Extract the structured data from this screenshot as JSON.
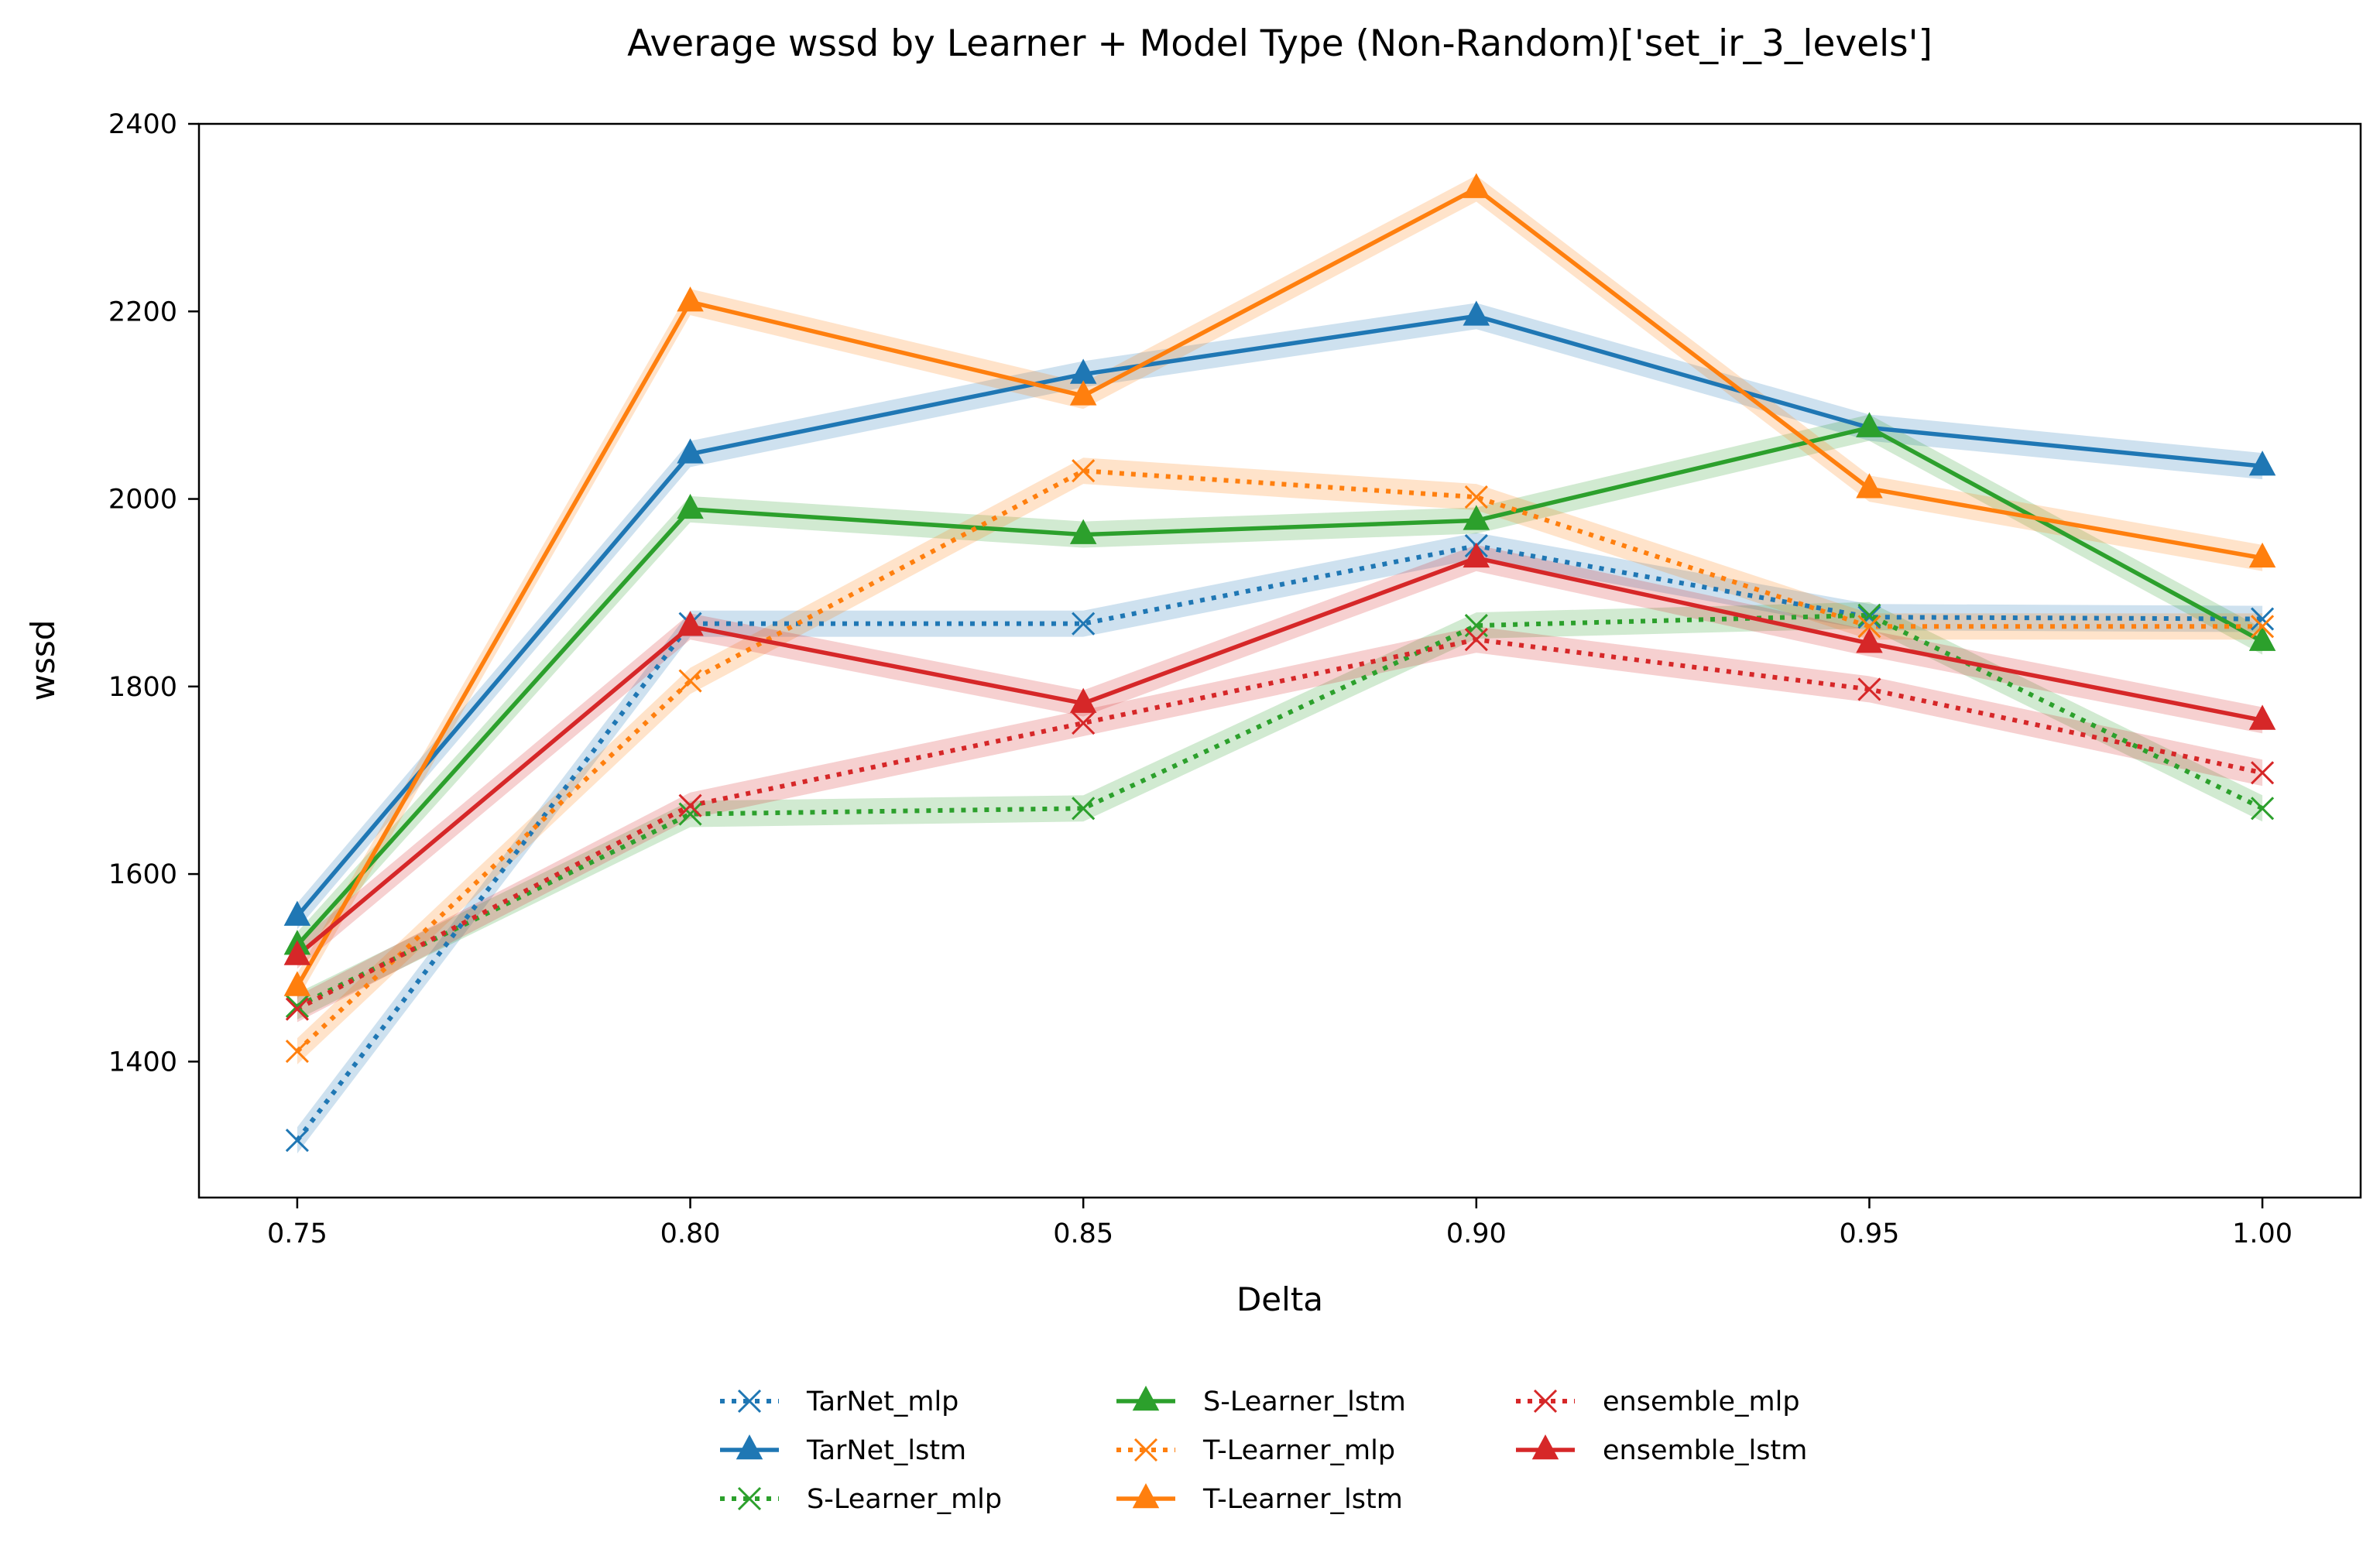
{
  "chart_data": {
    "type": "line",
    "title": "Average wssd by Learner + Model Type (Non-Random)['set_ir_3_levels']",
    "xlabel": "Delta",
    "ylabel": "wssd",
    "x": [
      0.75,
      0.8,
      0.85,
      0.9,
      0.95,
      1.0
    ],
    "x_tick_labels": [
      "0.75",
      "0.80",
      "0.85",
      "0.90",
      "0.95",
      "1.00"
    ],
    "y_ticks": [
      1400,
      1600,
      1800,
      2000,
      2200,
      2400
    ],
    "y_tick_labels": [
      "1400",
      "1600",
      "1800",
      "2000",
      "2200",
      "2400"
    ],
    "xlim": [
      0.7375,
      1.0125
    ],
    "ylim": [
      1255,
      2400
    ],
    "grid": false,
    "legend_position": "bottom-center",
    "band_halfwidth": 14,
    "series": [
      {
        "name": "TarNet_mlp",
        "color": "#1f77b4",
        "style": "dotted",
        "marker": "x",
        "values": [
          1316,
          1867,
          1867,
          1950,
          1874,
          1872
        ]
      },
      {
        "name": "TarNet_lstm",
        "color": "#1f77b4",
        "style": "solid",
        "marker": "triangle",
        "values": [
          1555,
          2048,
          2133,
          2195,
          2076,
          2035
        ]
      },
      {
        "name": "S-Learner_mlp",
        "color": "#2ca02c",
        "style": "dotted",
        "marker": "x",
        "values": [
          1459,
          1664,
          1670,
          1865,
          1876,
          1670
        ]
      },
      {
        "name": "S-Learner_lstm",
        "color": "#2ca02c",
        "style": "solid",
        "marker": "triangle",
        "values": [
          1524,
          1989,
          1962,
          1977,
          2076,
          1848
        ]
      },
      {
        "name": "T-Learner_mlp",
        "color": "#ff7f0e",
        "style": "dotted",
        "marker": "x",
        "values": [
          1411,
          1806,
          2030,
          2002,
          1864,
          1864
        ]
      },
      {
        "name": "T-Learner_lstm",
        "color": "#ff7f0e",
        "style": "solid",
        "marker": "triangle",
        "values": [
          1480,
          2210,
          2110,
          2331,
          2011,
          1937
        ]
      },
      {
        "name": "ensemble_mlp",
        "color": "#d62728",
        "style": "dotted",
        "marker": "x",
        "values": [
          1456,
          1673,
          1761,
          1850,
          1797,
          1708
        ]
      },
      {
        "name": "ensemble_lstm",
        "color": "#d62728",
        "style": "solid",
        "marker": "triangle",
        "values": [
          1513,
          1864,
          1782,
          1937,
          1846,
          1764
        ]
      }
    ]
  }
}
